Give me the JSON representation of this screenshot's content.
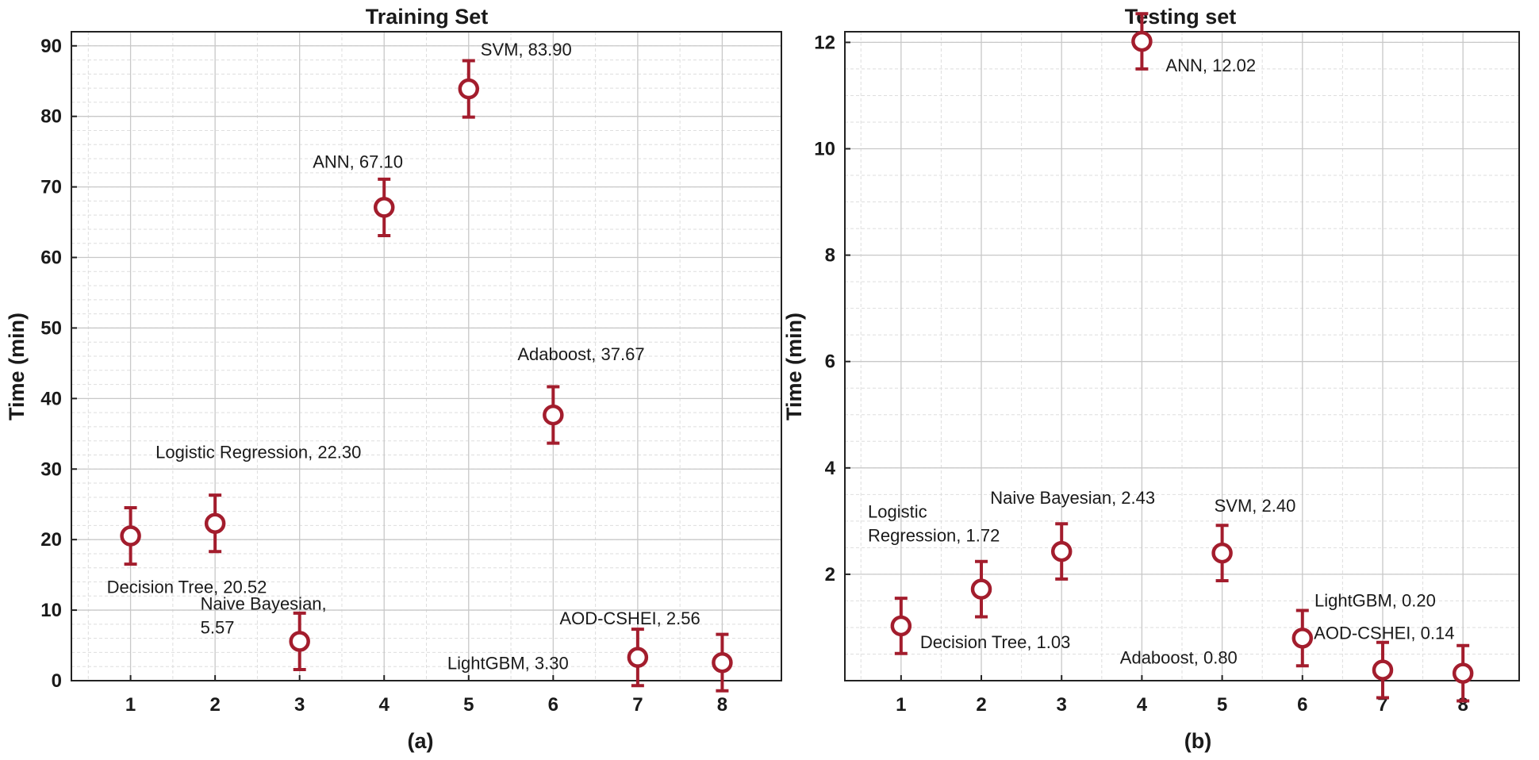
{
  "colors": {
    "marker": "#a31d2d",
    "grid_major": "#c8c8c8",
    "grid_minor": "#dedede",
    "axis": "#222222"
  },
  "chart_data": [
    {
      "type": "scatter",
      "title": "Training Set",
      "subtitle": "(a)",
      "xlabel": "",
      "ylabel": "Time (min)",
      "xlim": [
        0.3,
        8.7
      ],
      "ylim": [
        0,
        92
      ],
      "xticks": [
        1,
        2,
        3,
        4,
        5,
        6,
        7,
        8
      ],
      "yticks": [
        0,
        10,
        20,
        30,
        40,
        50,
        60,
        70,
        80,
        90
      ],
      "grid": true,
      "error_bars": true,
      "points": [
        {
          "x": 1,
          "y": 20.52,
          "err": 4,
          "label": [
            "Decision Tree, 20.52"
          ]
        },
        {
          "x": 2,
          "y": 22.3,
          "err": 4,
          "label": [
            "Logistic Regression, 22.30"
          ]
        },
        {
          "x": 3,
          "y": 5.57,
          "err": 4,
          "label": [
            "Naive Bayesian,",
            "5.57"
          ]
        },
        {
          "x": 4,
          "y": 67.1,
          "err": 4,
          "label": [
            "ANN, 67.10"
          ]
        },
        {
          "x": 5,
          "y": 83.9,
          "err": 4,
          "label": [
            "SVM, 83.90"
          ]
        },
        {
          "x": 6,
          "y": 37.67,
          "err": 4,
          "label": [
            "Adaboost, 37.67"
          ]
        },
        {
          "x": 7,
          "y": 3.3,
          "err": 4,
          "label": [
            "LightGBM, 3.30"
          ]
        },
        {
          "x": 8,
          "y": 2.56,
          "err": 4,
          "label": [
            "AOD-CSHEI, 2.56"
          ]
        }
      ]
    },
    {
      "type": "scatter",
      "title": "Testing set",
      "subtitle": "(b)",
      "xlabel": "",
      "ylabel": "Time (min)",
      "xlim": [
        0.3,
        8.7
      ],
      "ylim": [
        0,
        12.2
      ],
      "xticks": [
        1,
        2,
        3,
        4,
        5,
        6,
        7,
        8
      ],
      "yticks": [
        2,
        4,
        6,
        8,
        10,
        12
      ],
      "grid": true,
      "error_bars": true,
      "points": [
        {
          "x": 1,
          "y": 1.03,
          "err": 0.52,
          "label": [
            "Decision Tree, 1.03"
          ]
        },
        {
          "x": 2,
          "y": 1.72,
          "err": 0.52,
          "label": [
            "Logistic",
            "Regression, 1.72"
          ]
        },
        {
          "x": 3,
          "y": 2.43,
          "err": 0.52,
          "label": [
            "Naive Bayesian, 2.43"
          ]
        },
        {
          "x": 4,
          "y": 12.02,
          "err": 0.52,
          "label": [
            "ANN, 12.02"
          ]
        },
        {
          "x": 5,
          "y": 2.4,
          "err": 0.52,
          "label": [
            "SVM, 2.40"
          ]
        },
        {
          "x": 6,
          "y": 0.8,
          "err": 0.52,
          "label": [
            "Adaboost, 0.80"
          ]
        },
        {
          "x": 7,
          "y": 0.2,
          "err": 0.52,
          "label": [
            "LightGBM, 0.20"
          ]
        },
        {
          "x": 8,
          "y": 0.14,
          "err": 0.52,
          "label": [
            "AOD-CSHEI, 0.14"
          ]
        }
      ]
    }
  ]
}
